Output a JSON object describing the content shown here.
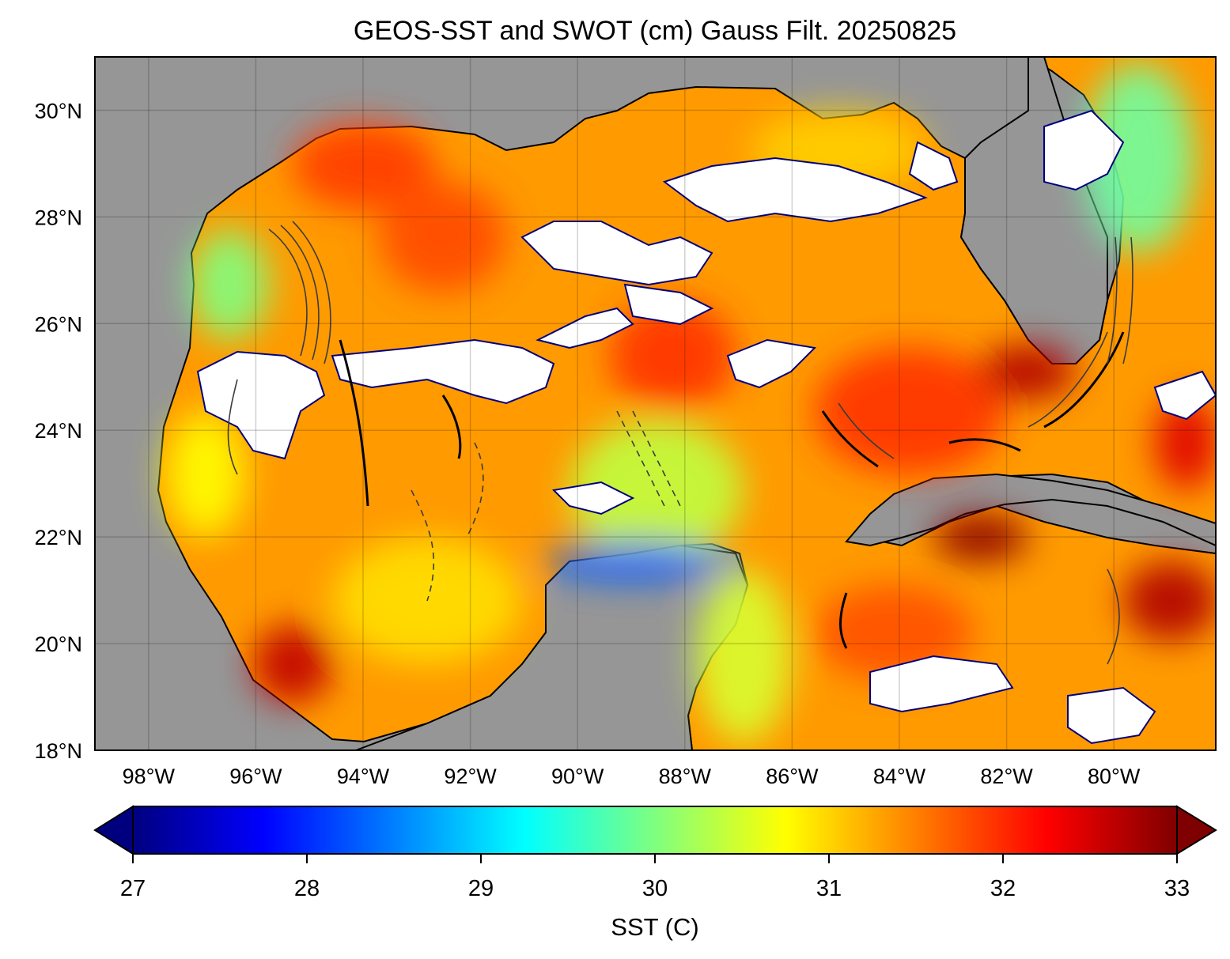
{
  "title": "GEOS-SST  and SWOT (cm) Gauss Filt. 20250825",
  "map": {
    "lon_range": [
      -99,
      -78.1
    ],
    "lat_range": [
      18,
      31
    ],
    "lon_ticks": [
      {
        "value": -98,
        "label": "98°W"
      },
      {
        "value": -96,
        "label": "96°W"
      },
      {
        "value": -94,
        "label": "94°W"
      },
      {
        "value": -92,
        "label": "92°W"
      },
      {
        "value": -90,
        "label": "90°W"
      },
      {
        "value": -88,
        "label": "88°W"
      },
      {
        "value": -86,
        "label": "86°W"
      },
      {
        "value": -84,
        "label": "84°W"
      },
      {
        "value": -82,
        "label": "82°W"
      },
      {
        "value": -80,
        "label": "80°W"
      }
    ],
    "lat_ticks": [
      {
        "value": 18,
        "label": "18°N"
      },
      {
        "value": 20,
        "label": "20°N"
      },
      {
        "value": 22,
        "label": "22°N"
      },
      {
        "value": 24,
        "label": "24°N"
      },
      {
        "value": 26,
        "label": "26°N"
      },
      {
        "value": 28,
        "label": "28°N"
      },
      {
        "value": 30,
        "label": "30°N"
      }
    ],
    "grid": true,
    "land_color": "#969696",
    "nodata_color": "#ffffff",
    "contour_color": "#3c3c3c"
  },
  "colorbar": {
    "label": "SST (C)",
    "min": 27,
    "max": 33,
    "ticks": [
      "27",
      "28",
      "29",
      "30",
      "31",
      "32",
      "33"
    ],
    "extend": "both",
    "colormap": "jet",
    "colors": [
      "#00007f",
      "#0000ff",
      "#007fff",
      "#00ffff",
      "#7fff7f",
      "#ffff00",
      "#ff7f00",
      "#ff0000",
      "#7f0000"
    ]
  }
}
